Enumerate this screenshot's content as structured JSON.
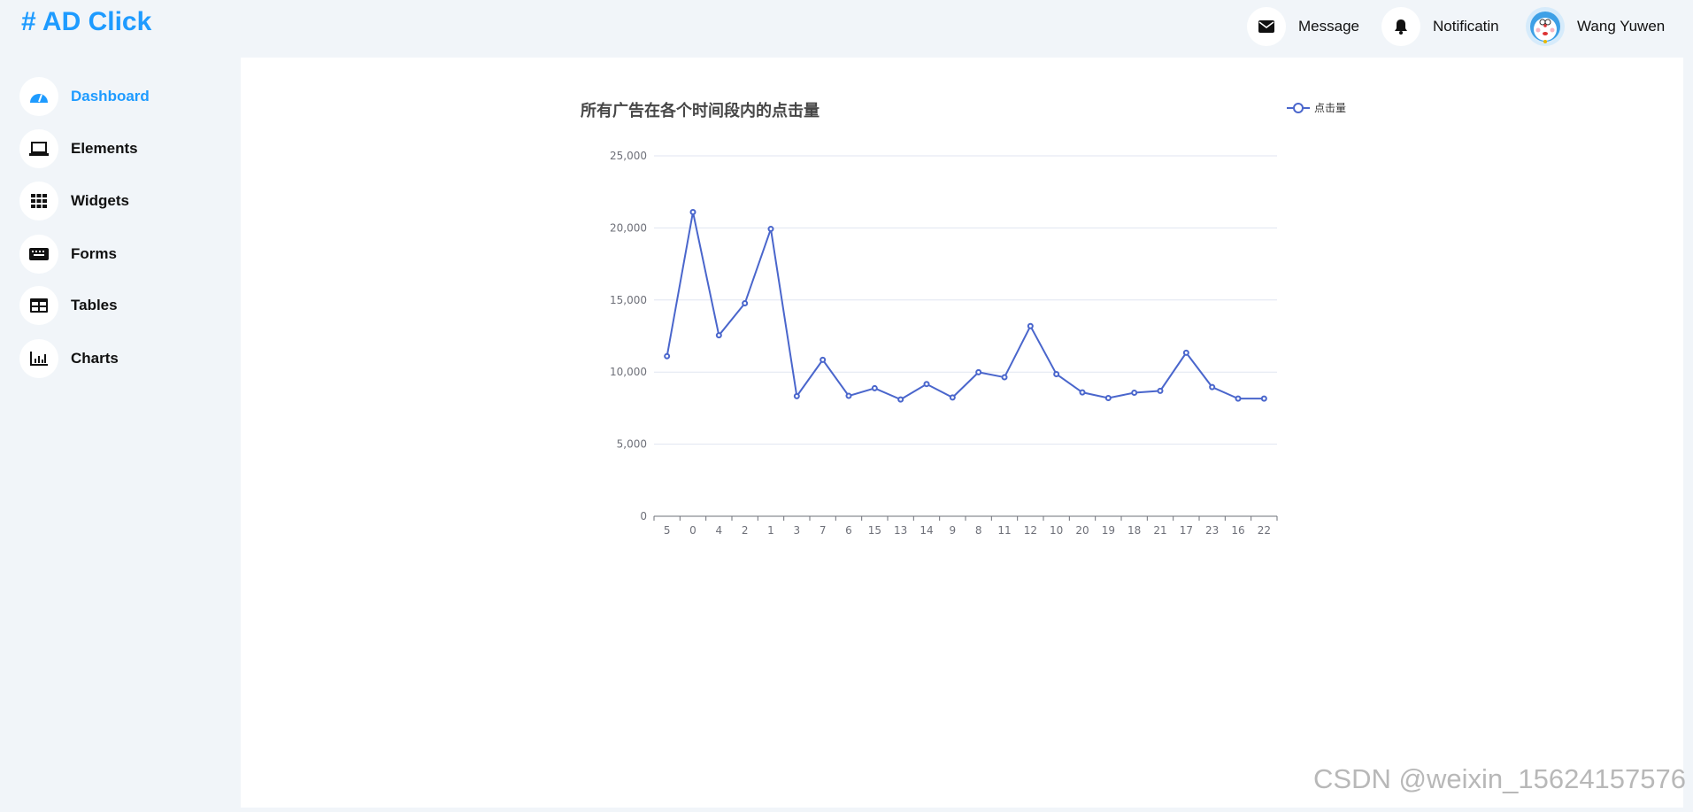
{
  "header": {
    "logo": "# AD Click",
    "message": "Message",
    "notification": "Notificatin",
    "user": "Wang Yuwen"
  },
  "sidebar": {
    "items": [
      {
        "label": "Dashboard",
        "icon": "gauge-icon",
        "active": true
      },
      {
        "label": "Elements",
        "icon": "laptop-icon"
      },
      {
        "label": "Widgets",
        "icon": "grid-icon"
      },
      {
        "label": "Forms",
        "icon": "keyboard-icon"
      },
      {
        "label": "Tables",
        "icon": "table-icon"
      },
      {
        "label": "Charts",
        "icon": "bar-chart-icon"
      }
    ]
  },
  "watermark": "CSDN @weixin_15624157576",
  "chart_data": {
    "type": "line",
    "title": "所有广告在各个时间段内的点击量",
    "legend": [
      "点击量"
    ],
    "legend_position": "top-right",
    "color": "#4a66cc",
    "categories": [
      "5",
      "0",
      "4",
      "2",
      "1",
      "3",
      "7",
      "6",
      "15",
      "13",
      "14",
      "9",
      "8",
      "11",
      "12",
      "10",
      "20",
      "19",
      "18",
      "21",
      "17",
      "23",
      "16",
      "22"
    ],
    "series": [
      {
        "name": "点击量",
        "values": [
          11100,
          21100,
          12550,
          14770,
          19930,
          8330,
          10850,
          8350,
          8880,
          8100,
          9170,
          8240,
          9990,
          9640,
          13190,
          9860,
          8590,
          8200,
          8570,
          8700,
          11340,
          8960,
          8160,
          8160
        ]
      }
    ],
    "ylim": [
      0,
      25000
    ],
    "yticks": [
      "0",
      "5,000",
      "10,000",
      "15,000",
      "20,000",
      "25,000"
    ],
    "grid": true
  }
}
